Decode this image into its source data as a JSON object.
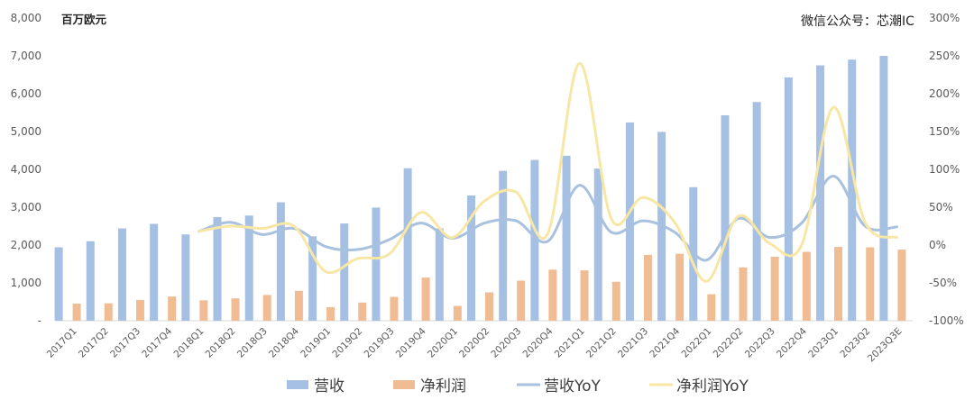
{
  "chart_data": {
    "type": "bar",
    "unit_label": "百万欧元",
    "watermark": "微信公众号：芯潮IC",
    "categories": [
      "2017Q1",
      "2017Q2",
      "2017Q3",
      "2017Q4",
      "2018Q1",
      "2018Q2",
      "2018Q3",
      "2018Q4",
      "2019Q1",
      "2019Q2",
      "2019Q3",
      "2019Q4",
      "2020Q1",
      "2020Q2",
      "2020Q3",
      "2020Q4",
      "2021Q1",
      "2021Q2",
      "2021Q3",
      "2021Q4",
      "2022Q1",
      "2022Q2",
      "2022Q3",
      "2022Q4",
      "2023Q1",
      "2023Q2",
      "2023Q3E"
    ],
    "y_left": {
      "min": 0,
      "max": 8000,
      "ticks": [
        "-",
        "1,000",
        "2,000",
        "3,000",
        "4,000",
        "5,000",
        "6,000",
        "7,000",
        "8,000"
      ]
    },
    "y_right": {
      "min": -100,
      "max": 300,
      "ticks": [
        "-100%",
        "-50%",
        "0%",
        "50%",
        "100%",
        "150%",
        "200%",
        "250%",
        "300%"
      ]
    },
    "series": [
      {
        "name": "营收",
        "kind": "bar",
        "color": "#a5c0e2",
        "values": [
          1940,
          2100,
          2440,
          2560,
          2280,
          2740,
          2780,
          3130,
          2230,
          2570,
          2990,
          4030,
          2440,
          3310,
          3960,
          4250,
          4360,
          4020,
          5240,
          4990,
          3530,
          5430,
          5780,
          6430,
          6750,
          6900,
          7000
        ]
      },
      {
        "name": "净利润",
        "kind": "bar",
        "color": "#f0bc94",
        "values": [
          450,
          460,
          550,
          640,
          540,
          590,
          680,
          790,
          360,
          480,
          630,
          1140,
          390,
          750,
          1060,
          1350,
          1330,
          1030,
          1740,
          1770,
          700,
          1410,
          1690,
          1820,
          1950,
          1940,
          1880
        ]
      },
      {
        "name": "营收YoY",
        "kind": "line",
        "color": "#a8c1de",
        "values": [
          null,
          null,
          null,
          null,
          18,
          30,
          14,
          22,
          -2,
          -6,
          7,
          29,
          9,
          29,
          32,
          5,
          79,
          17,
          32,
          17,
          -20,
          35,
          10,
          29,
          91,
          25,
          24
        ]
      },
      {
        "name": "净利润YoY",
        "kind": "line",
        "color": "#f8e6a5",
        "values": [
          null,
          null,
          null,
          null,
          18,
          25,
          22,
          25,
          -35,
          -18,
          -12,
          43,
          10,
          58,
          70,
          15,
          240,
          35,
          63,
          30,
          -48,
          38,
          2,
          0,
          182,
          30,
          10
        ]
      }
    ]
  }
}
